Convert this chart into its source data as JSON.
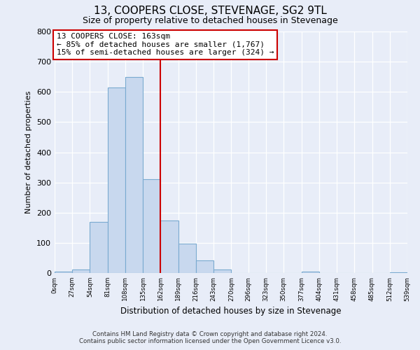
{
  "title": "13, COOPERS CLOSE, STEVENAGE, SG2 9TL",
  "subtitle": "Size of property relative to detached houses in Stevenage",
  "xlabel": "Distribution of detached houses by size in Stevenage",
  "ylabel": "Number of detached properties",
  "bin_edges": [
    0,
    27,
    54,
    81,
    108,
    135,
    162,
    189,
    216,
    243,
    270,
    296,
    323,
    350,
    377,
    404,
    431,
    458,
    485,
    512,
    539
  ],
  "bar_heights": [
    5,
    12,
    170,
    615,
    650,
    310,
    175,
    98,
    42,
    12,
    0,
    0,
    0,
    0,
    5,
    0,
    0,
    0,
    0,
    3
  ],
  "bar_color": "#c8d8ee",
  "bar_edge_color": "#7aaad0",
  "property_line_x": 162,
  "annotation_title": "13 COOPERS CLOSE: 163sqm",
  "annotation_line1": "← 85% of detached houses are smaller (1,767)",
  "annotation_line2": "15% of semi-detached houses are larger (324) →",
  "annotation_box_color": "#ffffff",
  "annotation_box_edge": "#cc0000",
  "vline_color": "#cc0000",
  "ylim": [
    0,
    800
  ],
  "xlim": [
    0,
    539
  ],
  "tick_labels": [
    "0sqm",
    "27sqm",
    "54sqm",
    "81sqm",
    "108sqm",
    "135sqm",
    "162sqm",
    "189sqm",
    "216sqm",
    "243sqm",
    "270sqm",
    "296sqm",
    "323sqm",
    "350sqm",
    "377sqm",
    "404sqm",
    "431sqm",
    "458sqm",
    "485sqm",
    "512sqm",
    "539sqm"
  ],
  "tick_positions": [
    0,
    27,
    54,
    81,
    108,
    135,
    162,
    189,
    216,
    243,
    270,
    296,
    323,
    350,
    377,
    404,
    431,
    458,
    485,
    512,
    539
  ],
  "yticks": [
    0,
    100,
    200,
    300,
    400,
    500,
    600,
    700,
    800
  ],
  "footer_line1": "Contains HM Land Registry data © Crown copyright and database right 2024.",
  "footer_line2": "Contains public sector information licensed under the Open Government Licence v3.0.",
  "bg_color": "#e8edf8",
  "plot_bg_color": "#e8edf8",
  "grid_color": "#ffffff"
}
